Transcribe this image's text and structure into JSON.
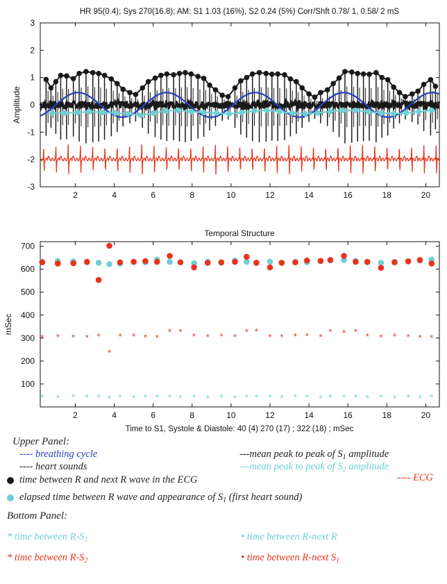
{
  "chart_data": [
    {
      "type": "line",
      "title": "HR 95(0.4);  Sys 270(16.8);  AM: S1 1.03 (16%),   S2 0.24 (5%)  Corr/Shft 0.78/  1,  0.58/  2 mS",
      "ylabel": "Amplitude",
      "xlim": [
        0.2,
        20.7
      ],
      "ylim": [
        -3,
        3
      ],
      "x_ticks": [
        2,
        4,
        6,
        8,
        10,
        12,
        14,
        16,
        18,
        20
      ],
      "y_ticks": [
        -3,
        -2,
        -1,
        0,
        1,
        2,
        3
      ],
      "beat_interval": 0.63,
      "s1_envelope": [
        [
          0.5,
          0.93
        ],
        [
          0.75,
          0.62
        ],
        [
          1.0,
          0.85
        ],
        [
          1.25,
          1.08
        ],
        [
          1.55,
          1.06
        ],
        [
          1.9,
          0.96
        ],
        [
          2.2,
          1.15
        ],
        [
          2.55,
          1.22
        ],
        [
          2.9,
          1.18
        ],
        [
          3.2,
          1.15
        ],
        [
          3.5,
          1.08
        ],
        [
          3.85,
          0.95
        ],
        [
          4.15,
          0.78
        ],
        [
          4.45,
          0.57
        ],
        [
          4.8,
          0.45
        ],
        [
          5.1,
          0.38
        ],
        [
          5.45,
          0.62
        ],
        [
          5.75,
          0.85
        ],
        [
          6.1,
          0.98
        ],
        [
          6.4,
          1.08
        ],
        [
          6.7,
          1.13
        ],
        [
          7.05,
          1.1
        ],
        [
          7.35,
          1.15
        ],
        [
          7.65,
          1.18
        ],
        [
          7.95,
          1.13
        ],
        [
          8.3,
          1.04
        ],
        [
          8.6,
          0.97
        ],
        [
          8.9,
          0.72
        ],
        [
          9.2,
          0.55
        ],
        [
          9.55,
          0.35
        ],
        [
          9.85,
          0.3
        ],
        [
          10.2,
          0.62
        ],
        [
          10.5,
          0.88
        ],
        [
          10.8,
          1.0
        ],
        [
          11.1,
          1.13
        ],
        [
          11.45,
          1.18
        ],
        [
          11.8,
          1.15
        ],
        [
          12.1,
          1.12
        ],
        [
          12.4,
          1.13
        ],
        [
          12.75,
          1.1
        ],
        [
          13.05,
          0.95
        ],
        [
          13.35,
          0.85
        ],
        [
          13.65,
          0.62
        ],
        [
          14.0,
          0.4
        ],
        [
          14.3,
          0.28
        ],
        [
          14.6,
          0.45
        ],
        [
          14.95,
          0.55
        ],
        [
          15.25,
          0.78
        ],
        [
          15.55,
          0.98
        ],
        [
          15.85,
          1.22
        ],
        [
          16.2,
          1.2
        ],
        [
          16.5,
          1.15
        ],
        [
          16.8,
          1.13
        ],
        [
          17.1,
          1.12
        ],
        [
          17.45,
          1.18
        ],
        [
          17.75,
          1.0
        ],
        [
          18.05,
          0.92
        ],
        [
          18.35,
          0.65
        ],
        [
          18.65,
          0.45
        ],
        [
          18.95,
          0.3
        ],
        [
          19.3,
          0.4
        ],
        [
          19.6,
          0.5
        ],
        [
          19.9,
          0.75
        ],
        [
          20.25,
          0.92
        ],
        [
          20.5,
          0.68
        ]
      ],
      "s2_envelope": [
        [
          0.8,
          -0.3
        ],
        [
          1.45,
          -0.3
        ],
        [
          2.1,
          -0.28
        ],
        [
          2.75,
          -0.25
        ],
        [
          3.4,
          -0.28
        ],
        [
          4.05,
          -0.3
        ],
        [
          4.7,
          -0.32
        ],
        [
          5.35,
          -0.38
        ],
        [
          6.0,
          -0.3
        ],
        [
          6.65,
          -0.22
        ],
        [
          7.3,
          -0.2
        ],
        [
          7.95,
          -0.25
        ],
        [
          8.6,
          -0.28
        ],
        [
          9.25,
          -0.3
        ],
        [
          9.9,
          -0.33
        ],
        [
          10.55,
          -0.28
        ],
        [
          11.2,
          -0.22
        ],
        [
          11.85,
          -0.2
        ],
        [
          12.5,
          -0.25
        ],
        [
          13.15,
          -0.3
        ],
        [
          13.8,
          -0.33
        ],
        [
          14.45,
          -0.3
        ],
        [
          15.1,
          -0.24
        ],
        [
          15.75,
          -0.2
        ],
        [
          16.4,
          -0.2
        ],
        [
          17.05,
          -0.25
        ],
        [
          17.7,
          -0.3
        ],
        [
          18.35,
          -0.32
        ],
        [
          19.0,
          -0.3
        ],
        [
          19.65,
          -0.25
        ],
        [
          20.3,
          -0.2
        ]
      ],
      "breathing_cycle": {
        "offset": 0.0,
        "amplitude": 0.45,
        "period": 4.55,
        "phase": 1.0
      },
      "ecg_baseline": -2.0,
      "heart_sound_baseline": 0.0
    },
    {
      "type": "scatter",
      "title": "Temporal Structure",
      "ylabel": "mSec",
      "xlabel": "Time to S1, Systole & Diastole:  40 (4)   270 (17)  ;   322 (18)  ; mSec",
      "xlim": [
        0.2,
        20.7
      ],
      "ylim": [
        0,
        720
      ],
      "x_ticks": [
        2,
        4,
        6,
        8,
        10,
        12,
        14,
        16,
        18,
        20
      ],
      "y_ticks": [
        100,
        200,
        300,
        400,
        500,
        600,
        700
      ],
      "x": [
        0.3,
        1.1,
        1.9,
        2.6,
        3.2,
        3.75,
        4.3,
        5.0,
        5.6,
        6.2,
        6.85,
        7.4,
        8.1,
        8.8,
        9.5,
        10.2,
        10.8,
        11.3,
        12.0,
        12.6,
        13.3,
        13.9,
        14.6,
        15.1,
        15.8,
        16.4,
        17.0,
        17.7,
        18.4,
        19.1,
        19.7,
        20.3
      ],
      "series": [
        {
          "name": "time between R-next R",
          "color": "#6fcfd6",
          "marker": "dot",
          "values": [
            632,
            636,
            634,
            630,
            628,
            622,
            625,
            632,
            630,
            642,
            632,
            630,
            626,
            632,
            628,
            638,
            632,
            628,
            633,
            628,
            632,
            630,
            635,
            638,
            640,
            636,
            630,
            628,
            632,
            635,
            638,
            642
          ]
        },
        {
          "name": "time between R-next S1",
          "color": "#e8341c",
          "marker": "dot",
          "values": [
            630,
            625,
            626,
            632,
            553,
            702,
            630,
            632,
            635,
            632,
            658,
            630,
            608,
            628,
            630,
            632,
            654,
            628,
            608,
            628,
            630,
            638,
            636,
            640,
            658,
            632,
            632,
            606,
            630,
            634,
            640,
            625
          ]
        },
        {
          "name": "time between R-S2",
          "color": "#e8341c",
          "marker": "star",
          "values": [
            302,
            306,
            304,
            302,
            308,
            238,
            308,
            308,
            304,
            303,
            328,
            328,
            308,
            306,
            308,
            306,
            328,
            330,
            306,
            306,
            308,
            310,
            306,
            328,
            324,
            328,
            308,
            304,
            308,
            306,
            302,
            302
          ]
        },
        {
          "name": "time between R-S1",
          "color": "#6fcfd6",
          "marker": "star",
          "values": [
            42,
            40,
            44,
            42,
            44,
            38,
            42,
            40,
            42,
            44,
            42,
            40,
            42,
            40,
            42,
            40,
            42,
            44,
            42,
            40,
            44,
            42,
            40,
            42,
            44,
            42,
            40,
            42,
            40,
            42,
            40,
            44
          ]
        }
      ]
    }
  ],
  "legend": {
    "upper_heading": "Upper Panel:",
    "breathing": "breathing cycle",
    "heart": "heart sounds",
    "s1_amp_pre": "mean  peak to peak of ",
    "s1_amp_sym": "S",
    "s1_amp_sub": "1",
    "s1_amp_post": " amplitude",
    "s2_amp_pre": "mean  peak to peak of ",
    "s2_amp_sym": "S",
    "s2_amp_sub": "2",
    "s2_amp_post": " amplitude",
    "ecg": "ECG",
    "rr_text": "time between R and next R wave in the ECG",
    "rs1_text_pre": "elapsed time between R wave and appearance of ",
    "rs1_text_sym": "S",
    "rs1_text_sub": "1",
    "rs1_text_post": " (first heart sound)",
    "bottom_heading": "Bottom Panel:",
    "b_rs1_pre": "time between R-",
    "b_rs1_sym": "S",
    "b_rs1_sub": "1",
    "b_rr": "time between R-next R",
    "b_rs2_pre": "time between R-",
    "b_rs2_sym": "S",
    "b_rs2_sub": "2",
    "b_rns1_pre": "time between R-next ",
    "b_rns1_sym": "S",
    "b_rns1_sub": "1",
    "colors": {
      "blue": "#2140b8",
      "cyan": "#6fcfd6",
      "red": "#e8341c",
      "black": "#1a1a1a"
    }
  }
}
